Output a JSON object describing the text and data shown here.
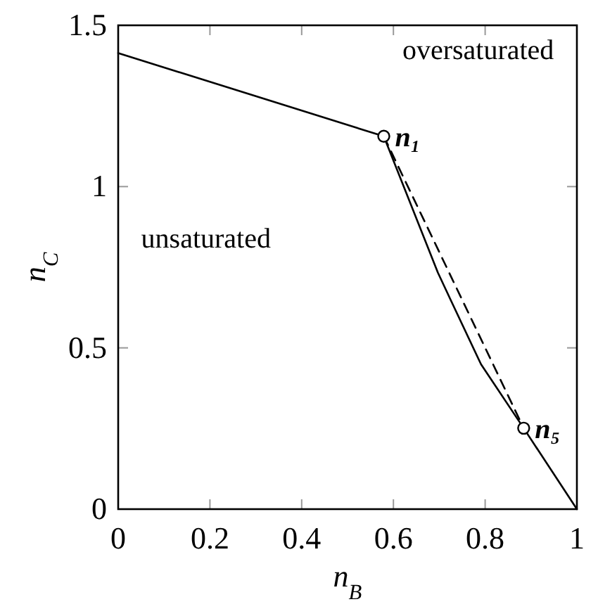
{
  "chart_data": {
    "type": "line",
    "xlabel": "n$_{B}$",
    "ylabel": "n$_{C}$",
    "xlim": [
      0,
      1
    ],
    "ylim": [
      0,
      1.5
    ],
    "xticks": [
      0,
      0.2,
      0.4,
      0.6,
      0.8,
      1
    ],
    "yticks": [
      0,
      0.5,
      1,
      1.5
    ],
    "grid": false,
    "series": [
      {
        "color": "#000000",
        "line_style": "solid",
        "marker": "none",
        "x": [
          0,
          0.579,
          0.697,
          0.725,
          0.791,
          0.884,
          1
        ],
        "values": [
          1.414,
          1.156,
          0.733,
          0.648,
          0.449,
          0.251,
          0
        ]
      },
      {
        "color": "#000000",
        "line_style": "dashed",
        "marker": "none",
        "x": [
          0.579,
          0.884
        ],
        "values": [
          1.156,
          0.251
        ]
      },
      {
        "type": "scatter",
        "color": "#000000",
        "marker": "circle",
        "x": [
          0.579,
          0.884
        ],
        "values": [
          1.156,
          0.251
        ]
      }
    ],
    "annotations": [
      "oversaturated",
      "unsaturated",
      {
        "text": "n₁",
        "x": 0.579,
        "y": 1.156
      },
      {
        "text": "n₅",
        "x": 0.884,
        "y": 0.251
      }
    ]
  }
}
